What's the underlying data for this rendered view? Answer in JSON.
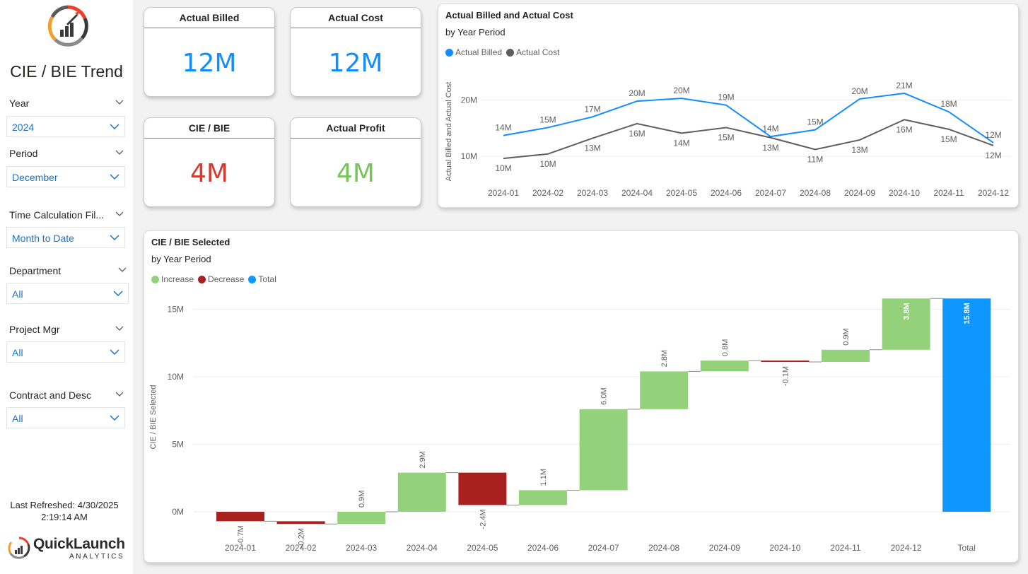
{
  "sidebar": {
    "title": "CIE / BIE Trend",
    "filters": [
      {
        "label": "Year",
        "value": "2024"
      },
      {
        "label": "Period",
        "value": "December"
      },
      {
        "label": "Time Calculation Fil...",
        "value": "Month to Date"
      },
      {
        "label": "Department",
        "value": "All"
      },
      {
        "label": "Project Mgr",
        "value": "All"
      },
      {
        "label": "Contract and Desc",
        "value": "All"
      }
    ],
    "refreshed_line1": "Last Refreshed: 4/30/2025",
    "refreshed_line2": "2:19:14 AM",
    "brand_name": "QuickLaunch",
    "brand_sub": "ANALYTICS"
  },
  "kpis": [
    {
      "title": "Actual Billed",
      "value": "12M",
      "color": "#118dff"
    },
    {
      "title": "Actual Cost",
      "value": "12M",
      "color": "#118dff"
    },
    {
      "title": "CIE / BIE",
      "value": "4M",
      "color": "#d9382d"
    },
    {
      "title": "Actual Profit",
      "value": "4M",
      "color": "#77c45a"
    }
  ],
  "colors": {
    "billed": "#118dff",
    "cost": "#605e5c",
    "increase": "#93d27a",
    "decrease": "#a8211f",
    "total": "#0d97ff"
  },
  "line_chart": {
    "title": "Actual Billed and Actual Cost",
    "subtitle": "by Year Period",
    "legend": [
      "Actual Billed",
      "Actual Cost"
    ],
    "ylabel": "Actual Billed and Actual Cost",
    "y_ticks": [
      "10M",
      "20M"
    ]
  },
  "waterfall_chart": {
    "title": "CIE / BIE Selected",
    "subtitle": "by Year Period",
    "legend": [
      "Increase",
      "Decrease",
      "Total"
    ],
    "ylabel": "CIE / BIE Selected",
    "y_ticks": [
      "0M",
      "5M",
      "10M",
      "15M"
    ]
  },
  "chart_data": [
    {
      "type": "line",
      "title": "Actual Billed and Actual Cost",
      "subtitle": "by Year Period",
      "ylabel": "Actual Billed and Actual Cost",
      "x": [
        "2024-01",
        "2024-02",
        "2024-03",
        "2024-04",
        "2024-05",
        "2024-06",
        "2024-07",
        "2024-08",
        "2024-09",
        "2024-10",
        "2024-11",
        "2024-12"
      ],
      "series": [
        {
          "name": "Actual Billed",
          "values": [
            13.7,
            15.1,
            17.0,
            19.8,
            20.3,
            19.1,
            13.5,
            14.7,
            20.2,
            21.2,
            17.9,
            12.4
          ],
          "labels": [
            "14M",
            "15M",
            "17M",
            "20M",
            "20M",
            "19M",
            "14M",
            "15M",
            "20M",
            "21M",
            "18M",
            "12M"
          ]
        },
        {
          "name": "Actual Cost",
          "values": [
            9.6,
            10.4,
            13.2,
            15.8,
            14.1,
            15.1,
            13.3,
            11.2,
            12.9,
            16.5,
            14.8,
            11.9
          ],
          "labels": [
            "10M",
            "10M",
            "13M",
            "16M",
            "14M",
            "15M",
            "13M",
            "11M",
            "13M",
            "16M",
            "15M",
            "12M"
          ]
        }
      ],
      "y_ticks": [
        10,
        20
      ],
      "ylim": [
        5,
        24
      ],
      "legend": "top-left"
    },
    {
      "type": "bar",
      "subtype": "waterfall",
      "title": "CIE / BIE Selected",
      "subtitle": "by Year Period",
      "ylabel": "CIE / BIE Selected",
      "categories": [
        "2024-01",
        "2024-02",
        "2024-03",
        "2024-04",
        "2024-05",
        "2024-06",
        "2024-07",
        "2024-08",
        "2024-09",
        "2024-10",
        "2024-11",
        "2024-12",
        "Total"
      ],
      "values": [
        -0.7,
        -0.2,
        0.9,
        2.9,
        -2.4,
        1.1,
        6.0,
        2.8,
        0.8,
        -0.1,
        0.9,
        3.8,
        15.8
      ],
      "labels": [
        "-0.7M",
        "-0.2M",
        "0.9M",
        "2.9M",
        "-2.4M",
        "1.1M",
        "6.0M",
        "2.8M",
        "0.8M",
        "-0.1M",
        "0.9M",
        "3.8M",
        "15.8M"
      ],
      "y_ticks": [
        0,
        5,
        10,
        15
      ],
      "ylim": [
        -2,
        17
      ],
      "legend": "top-left"
    }
  ]
}
